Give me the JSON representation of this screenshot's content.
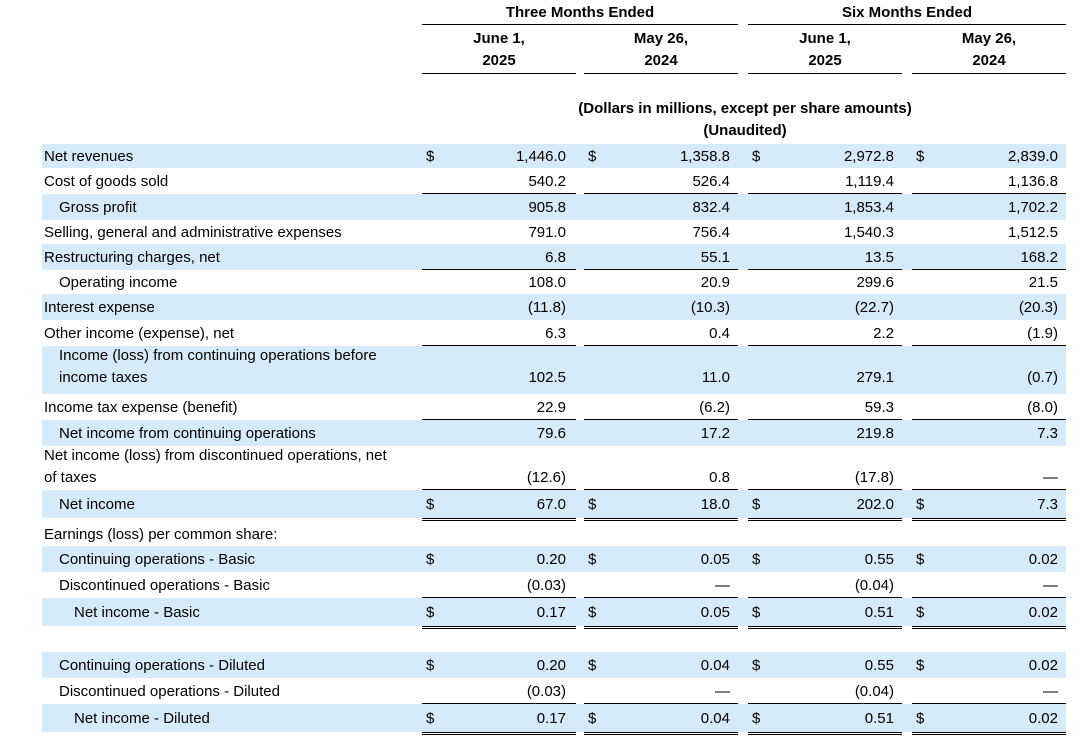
{
  "header": {
    "three_months": "Three Months Ended",
    "six_months": "Six Months Ended",
    "col1_l1": "June 1,",
    "col1_l2": "2025",
    "col2_l1": "May 26,",
    "col2_l2": "2024",
    "col3_l1": "June 1,",
    "col3_l2": "2025",
    "col4_l1": "May 26,",
    "col4_l2": "2024",
    "units": "(Dollars in millions, except per share amounts)",
    "unaudited": "(Unaudited)"
  },
  "rows": [
    {
      "label": "Net revenues",
      "indent": 0,
      "dollar": true,
      "values": [
        "1,446.0",
        "1,358.8",
        "2,972.8",
        "2,839.0"
      ],
      "shade": true,
      "rule": false
    },
    {
      "label": "Cost of goods sold",
      "indent": 0,
      "dollar": false,
      "values": [
        "540.2",
        "526.4",
        "1,119.4",
        "1,136.8"
      ],
      "shade": false,
      "rule": true
    },
    {
      "label": "Gross profit",
      "indent": 1,
      "dollar": false,
      "values": [
        "905.8",
        "832.4",
        "1,853.4",
        "1,702.2"
      ],
      "shade": true,
      "rule": false
    },
    {
      "label": "Selling, general and administrative expenses",
      "indent": 0,
      "dollar": false,
      "values": [
        "791.0",
        "756.4",
        "1,540.3",
        "1,512.5"
      ],
      "shade": false,
      "rule": false
    },
    {
      "label": "Restructuring charges, net",
      "indent": 0,
      "dollar": false,
      "values": [
        "6.8",
        "55.1",
        "13.5",
        "168.2"
      ],
      "shade": true,
      "rule": true
    },
    {
      "label": "Operating income",
      "indent": 1,
      "dollar": false,
      "values": [
        "108.0",
        "20.9",
        "299.6",
        "21.5"
      ],
      "shade": false,
      "rule": false
    },
    {
      "label": "Interest expense",
      "indent": 0,
      "dollar": false,
      "values": [
        "(11.8)",
        "(10.3)",
        "(22.7)",
        "(20.3)"
      ],
      "shade": true,
      "rule": false
    },
    {
      "label": "Other income (expense), net",
      "indent": 0,
      "dollar": false,
      "values": [
        "6.3",
        "0.4",
        "2.2",
        "(1.9)"
      ],
      "shade": false,
      "rule": true
    },
    {
      "label": "Income (loss) from continuing operations before",
      "label2": "income taxes",
      "indent": 1,
      "dollar": false,
      "values": [
        "102.5",
        "11.0",
        "279.1",
        "(0.7)"
      ],
      "shade": true,
      "rule": false
    },
    {
      "label": "Income tax expense (benefit)",
      "indent": 0,
      "dollar": false,
      "values": [
        "22.9",
        "(6.2)",
        "59.3",
        "(8.0)"
      ],
      "shade": false,
      "rule": true
    },
    {
      "label": "Net income from continuing operations",
      "indent": 1,
      "dollar": false,
      "values": [
        "79.6",
        "17.2",
        "219.8",
        "7.3"
      ],
      "shade": true,
      "rule": false
    },
    {
      "label": "Net income (loss) from discontinued operations, net",
      "label2": "of taxes",
      "indent": 0,
      "dollar": false,
      "values": [
        "(12.6)",
        "0.8",
        "(17.8)",
        "—"
      ],
      "shade": false,
      "rule": true
    },
    {
      "label": "Net income",
      "indent": 1,
      "dollar": true,
      "values": [
        "67.0",
        "18.0",
        "202.0",
        "7.3"
      ],
      "shade": true,
      "rule": false,
      "drule": true
    },
    {
      "label": "Earnings (loss) per common share:",
      "indent": 0,
      "dollar": false,
      "values": [],
      "shade": false,
      "rule": false
    },
    {
      "label": "Continuing operations - Basic",
      "indent": 1,
      "dollar": true,
      "values": [
        "0.20",
        "0.05",
        "0.55",
        "0.02"
      ],
      "shade": true,
      "rule": false
    },
    {
      "label": "Discontinued operations - Basic",
      "indent": 1,
      "dollar": false,
      "values": [
        "(0.03)",
        "—",
        "(0.04)",
        "—"
      ],
      "shade": false,
      "rule": true
    },
    {
      "label": "Net income - Basic",
      "indent": 2,
      "dollar": true,
      "values": [
        "0.17",
        "0.05",
        "0.51",
        "0.02"
      ],
      "shade": true,
      "rule": false,
      "drule": true
    },
    {
      "label": "Continuing operations - Diluted",
      "indent": 1,
      "dollar": true,
      "values": [
        "0.20",
        "0.04",
        "0.55",
        "0.02"
      ],
      "shade": true,
      "rule": false
    },
    {
      "label": "Discontinued operations - Diluted",
      "indent": 1,
      "dollar": false,
      "values": [
        "(0.03)",
        "—",
        "(0.04)",
        "—"
      ],
      "shade": false,
      "rule": true
    },
    {
      "label": "Net income - Diluted",
      "indent": 2,
      "dollar": true,
      "values": [
        "0.17",
        "0.04",
        "0.51",
        "0.02"
      ],
      "shade": true,
      "rule": false,
      "drule": true
    }
  ],
  "dollar_sign": "$",
  "colors": {
    "shade": "#d6ebf9"
  }
}
